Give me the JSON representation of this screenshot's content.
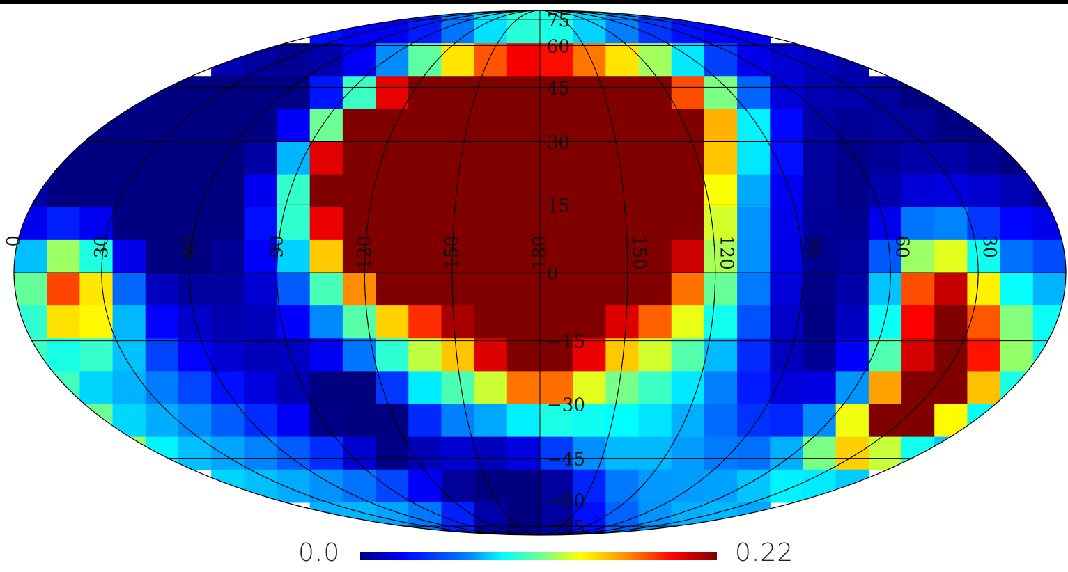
{
  "map": {
    "projection": "mollweide",
    "colormap": "jet",
    "lon_labels": [
      "0",
      "30",
      "60",
      "90",
      "120",
      "150",
      "180",
      "150",
      "120",
      "90",
      "60",
      "30"
    ],
    "lat_labels": [
      "75",
      "60",
      "45",
      "30",
      "15",
      "0",
      "-15",
      "-30",
      "-45",
      "-60",
      "-75"
    ]
  },
  "colorbar": {
    "min_label": "0.0",
    "max_label": "0.22",
    "min_value": 0.0,
    "max_value": 0.22
  }
}
